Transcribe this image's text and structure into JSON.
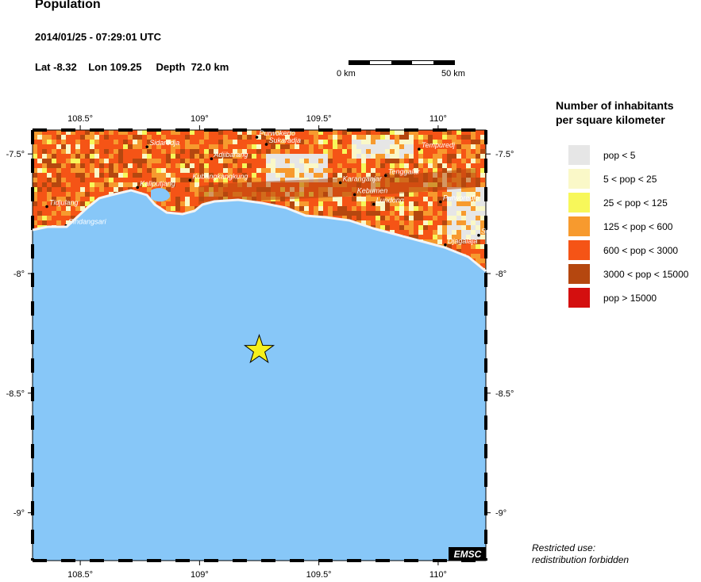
{
  "header": {
    "title": "Population",
    "datetime": "2014/01/25 - 07:29:01 UTC",
    "lat_label": "Lat",
    "lat_value": "-8.32",
    "lon_label": "Lon",
    "lon_value": "109.25",
    "depth_label": "Depth",
    "depth_value": "72.0 km"
  },
  "scale": {
    "left_label": "0 km",
    "right_label": "50 km"
  },
  "legend": {
    "title_line1": "Number of inhabitants",
    "title_line2": "per square kilometer",
    "items": [
      {
        "label": "pop < 5",
        "color": "#e6e6e6"
      },
      {
        "label": "5 < pop < 25",
        "color": "#faf8c8"
      },
      {
        "label": "25 < pop < 125",
        "color": "#f7f75a"
      },
      {
        "label": "125 < pop < 600",
        "color": "#f79a2e"
      },
      {
        "label": "600 < pop < 3000",
        "color": "#f55416"
      },
      {
        "label": "3000 < pop < 15000",
        "color": "#b5470f"
      },
      {
        "label": "pop > 15000",
        "color": "#d40f0f"
      }
    ]
  },
  "map": {
    "sea_color": "#87c7f8",
    "lon_ticks": [
      "108.5°",
      "109°",
      "109.5°",
      "110°"
    ],
    "lat_ticks": [
      "-7.5°",
      "-8°",
      "-8.5°",
      "-9°"
    ],
    "lon_range": [
      108.3,
      110.2
    ],
    "lat_range": [
      -9.2,
      -7.4
    ],
    "epicenter": {
      "lat": -8.32,
      "lon": 109.25
    },
    "cities": [
      {
        "name": "Purwokerto",
        "lon": 109.24,
        "lat": -7.43
      },
      {
        "name": "Sukaradja",
        "lon": 109.28,
        "lat": -7.46
      },
      {
        "name": "Sidaredja",
        "lon": 108.78,
        "lat": -7.47
      },
      {
        "name": "Adjibarang",
        "lon": 109.05,
        "lat": -7.52
      },
      {
        "name": "Tempuredj",
        "lon": 109.92,
        "lat": -7.48
      },
      {
        "name": "Tenggalar",
        "lon": 109.78,
        "lat": -7.59
      },
      {
        "name": "Kaliputjang",
        "lon": 108.74,
        "lat": -7.64
      },
      {
        "name": "Kubangkangkung",
        "lon": 108.96,
        "lat": -7.61
      },
      {
        "name": "Karanganjar",
        "lon": 109.59,
        "lat": -7.62
      },
      {
        "name": "Kebumen",
        "lon": 109.65,
        "lat": -7.67
      },
      {
        "name": "Lundong",
        "lon": 109.73,
        "lat": -7.71
      },
      {
        "name": "Purworedjo",
        "lon": 110.01,
        "lat": -7.7
      },
      {
        "name": "Tidjulang",
        "lon": 108.36,
        "lat": -7.72
      },
      {
        "name": "Sindangsari",
        "lon": 108.44,
        "lat": -7.8
      },
      {
        "name": "Djagalaja",
        "lon": 110.03,
        "lat": -7.88
      },
      {
        "name": "Se",
        "lon": 110.17,
        "lat": -7.84
      }
    ],
    "credit": "EMSC"
  },
  "footer": {
    "line1": "Restricted use:",
    "line2": "redistribution forbidden"
  }
}
